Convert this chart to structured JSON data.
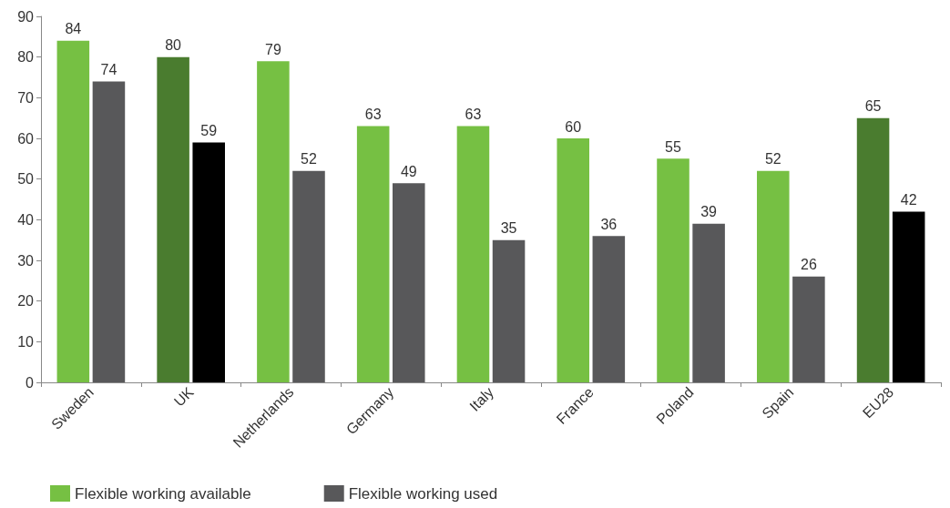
{
  "chart_data": {
    "type": "bar",
    "categories": [
      "Sweden",
      "UK",
      "Netherlands",
      "Germany",
      "Italy",
      "France",
      "Poland",
      "Spain",
      "EU28"
    ],
    "series": [
      {
        "name": "Flexible working available",
        "color": "#76c043",
        "colors": [
          "#76c043",
          "#4a7c2f",
          "#76c043",
          "#76c043",
          "#76c043",
          "#76c043",
          "#76c043",
          "#76c043",
          "#4a7c2f"
        ],
        "values": [
          84,
          80,
          79,
          63,
          63,
          60,
          55,
          52,
          65
        ]
      },
      {
        "name": "Flexible working used",
        "color": "#58585a",
        "colors": [
          "#58585a",
          "#000000",
          "#58585a",
          "#58585a",
          "#58585a",
          "#58585a",
          "#58585a",
          "#58585a",
          "#000000"
        ],
        "values": [
          74,
          59,
          52,
          49,
          35,
          36,
          39,
          26,
          42
        ]
      }
    ],
    "ylim": [
      0,
      90
    ],
    "yticks": [
      0,
      10,
      20,
      30,
      40,
      50,
      60,
      70,
      80,
      90
    ],
    "grid": false,
    "legend": "bottom left",
    "data_labels": true
  }
}
